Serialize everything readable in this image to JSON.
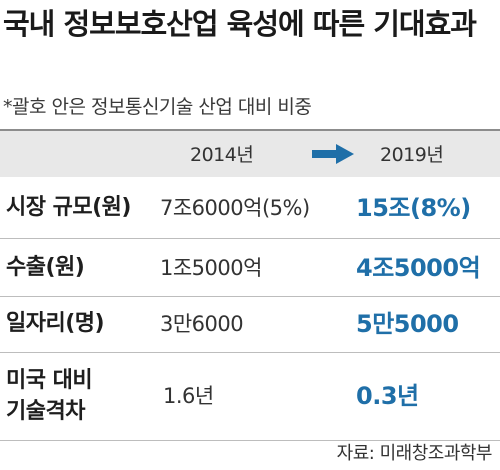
{
  "title": "국내 정보보호산업 육성에 따른 기대효과",
  "subtitle": "*괄호 안은 정보통신기술 산업 대비 비중",
  "header": {
    "year_from": "2014년",
    "year_to": "2019년",
    "arrow_icon": "right-arrow-icon",
    "arrow_color": "#1f6fa8"
  },
  "rows": [
    {
      "label": "시장 규모(원)",
      "value_2014": "7조6000억(5%)",
      "value_2019": "15조(8%)"
    },
    {
      "label": "수출(원)",
      "value_2014": "1조5000억",
      "value_2019": "4조5000억"
    },
    {
      "label": "일자리(명)",
      "value_2014": "3만6000",
      "value_2019": "5만5000"
    },
    {
      "label_line1": "미국 대비",
      "label_line2": "기술격차",
      "value_2014": "1.6년",
      "value_2019": "0.3년"
    }
  ],
  "source": "자료: 미래창조과학부",
  "colors": {
    "accent": "#1f6fa8",
    "header_background": "#e8e8e8"
  }
}
